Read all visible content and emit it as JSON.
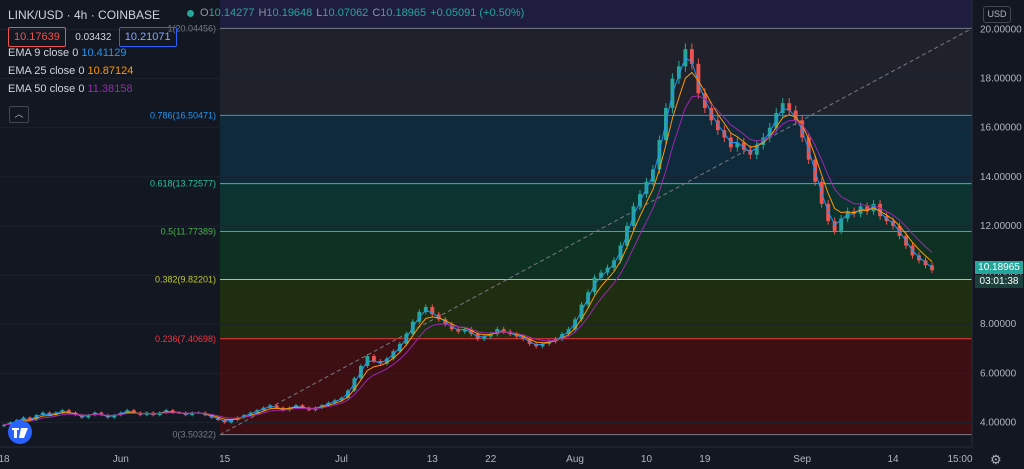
{
  "legend": {
    "symbol": "LINK/USD · 4h · COINBASE",
    "ohlc": [
      {
        "label": "O",
        "value": "10.14277"
      },
      {
        "label": "H",
        "value": "10.19648"
      },
      {
        "label": "L",
        "value": "10.07062"
      },
      {
        "label": "C",
        "value": "10.18965"
      },
      {
        "label": "",
        "value": "+0.05091 (+0.50%)"
      }
    ],
    "sell_price": "10.17639",
    "spread": "0.03432",
    "buy_price": "10.21071",
    "emas": [
      {
        "label": "EMA 9 close 0",
        "value": "10.41129",
        "color": "#2196f3"
      },
      {
        "label": "EMA 25 close 0",
        "value": "10.87124",
        "color": "#ff9800"
      },
      {
        "label": "EMA 50 close 0",
        "value": "11.38158",
        "color": "#9c27b0"
      }
    ],
    "collapse_glyph": "︿"
  },
  "currency": "USD",
  "last_price": "10.18965",
  "countdown": "03:01:38",
  "chart_data": {
    "type": "candlestick",
    "title": "LINK/USD 4h COINBASE",
    "ylim": [
      3.0,
      21.2
    ],
    "yticks": [
      "20.00000",
      "18.00000",
      "16.00000",
      "14.00000",
      "12.00000",
      "10.00000",
      "8.00000",
      "6.00000",
      "4.00000"
    ],
    "ytick_values": [
      20,
      18,
      16,
      14,
      12,
      10,
      8,
      6,
      4
    ],
    "xticks": [
      "18",
      "Jun",
      "15",
      "Jul",
      "13",
      "22",
      "Aug",
      "10",
      "19",
      "Sep",
      "14",
      "15:00"
    ],
    "xtick_index": [
      0,
      18,
      34,
      52,
      66,
      75,
      88,
      99,
      108,
      123,
      137,
      148
    ],
    "fib_levels": [
      {
        "ratio": "1",
        "label": "1(20.04456)",
        "price": 20.04456,
        "color": "#787b86"
      },
      {
        "ratio": "0.786",
        "label": "0.786(16.50471)",
        "price": 16.50471,
        "color": "#2196f3"
      },
      {
        "ratio": "0.618",
        "label": "0.618(13.72577)",
        "price": 13.72577,
        "color": "#26c6a0"
      },
      {
        "ratio": "0.5",
        "label": "0.5(11.77389)",
        "price": 11.77389,
        "color": "#4caf50"
      },
      {
        "ratio": "0.382",
        "label": "0.382(9.82201)",
        "price": 9.82201,
        "color": "#c0ca33"
      },
      {
        "ratio": "0.236",
        "label": "0.236(7.40698)",
        "price": 7.40698,
        "color": "#f23645"
      },
      {
        "ratio": "0",
        "label": "0(3.50322)",
        "price": 3.50322,
        "color": "#787b86"
      }
    ],
    "fib_fills": [
      "#1f1d3f",
      "#1f222b",
      "#0f2a3a",
      "#0d3330",
      "#0e3222",
      "#1f2e10",
      "#3d0e12"
    ],
    "close_series_daily": [
      3.9,
      4.0,
      4.1,
      4.2,
      4.1,
      4.3,
      4.4,
      4.3,
      4.4,
      4.5,
      4.4,
      4.3,
      4.2,
      4.3,
      4.4,
      4.3,
      4.2,
      4.3,
      4.4,
      4.5,
      4.4,
      4.3,
      4.4,
      4.3,
      4.4,
      4.5,
      4.4,
      4.4,
      4.3,
      4.4,
      4.4,
      4.3,
      4.2,
      4.1,
      4.0,
      4.1,
      4.2,
      4.3,
      4.4,
      4.5,
      4.6,
      4.7,
      4.6,
      4.5,
      4.6,
      4.7,
      4.6,
      4.5,
      4.6,
      4.7,
      4.8,
      4.9,
      5.0,
      5.3,
      5.8,
      6.3,
      6.7,
      6.5,
      6.4,
      6.6,
      6.9,
      7.2,
      7.6,
      8.1,
      8.5,
      8.7,
      8.4,
      8.2,
      8.0,
      7.8,
      7.7,
      7.8,
      7.6,
      7.4,
      7.5,
      7.6,
      7.8,
      7.7,
      7.6,
      7.5,
      7.4,
      7.2,
      7.1,
      7.2,
      7.3,
      7.4,
      7.6,
      7.8,
      8.2,
      8.8,
      9.3,
      9.9,
      10.1,
      10.3,
      10.6,
      11.2,
      12.0,
      12.8,
      13.3,
      13.8,
      14.3,
      15.5,
      16.8,
      18.0,
      18.5,
      19.2,
      18.6,
      17.4,
      16.8,
      16.3,
      15.9,
      15.6,
      15.2,
      15.4,
      15.1,
      14.9,
      15.3,
      15.6,
      16.0,
      16.6,
      17.0,
      16.7,
      16.3,
      15.6,
      14.7,
      13.8,
      12.9,
      12.2,
      11.8,
      12.3,
      12.6,
      12.5,
      12.8,
      12.6,
      12.9,
      12.4,
      12.2,
      12.0,
      11.6,
      11.2,
      10.8,
      10.6,
      10.4,
      10.2
    ]
  }
}
